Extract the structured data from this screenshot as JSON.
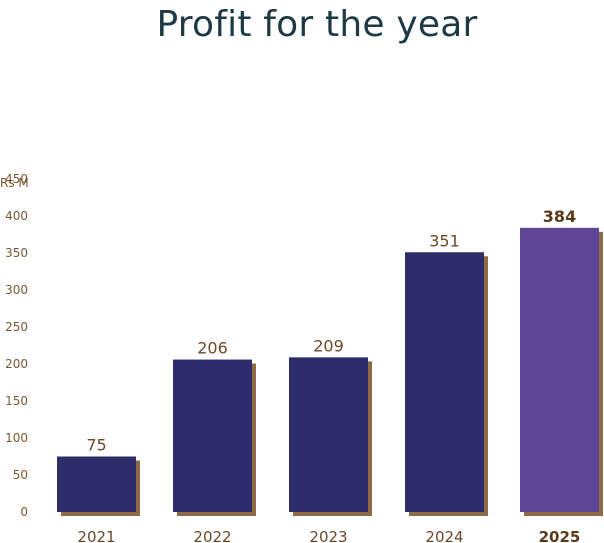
{
  "chart_data": {
    "type": "bar",
    "title": "Profit for the year",
    "unit_label": "Rs M",
    "categories": [
      "2021",
      "2022",
      "2023",
      "2024",
      "2025"
    ],
    "values": [
      75,
      206,
      209,
      351,
      384
    ],
    "data_labels": [
      "75",
      "206",
      "209",
      "351",
      "384"
    ],
    "highlight_index": 4,
    "ylim": [
      0,
      450
    ],
    "yticks": [
      0,
      50,
      100,
      150,
      200,
      250,
      300,
      350,
      400,
      450
    ],
    "grid": false,
    "legend": "none",
    "colors": {
      "bar": "#2d2d6b",
      "bar_highlight": "#5e4596",
      "shadow": "#8c6b45",
      "text": "#7a5a34",
      "title": "#1e3a44"
    }
  }
}
